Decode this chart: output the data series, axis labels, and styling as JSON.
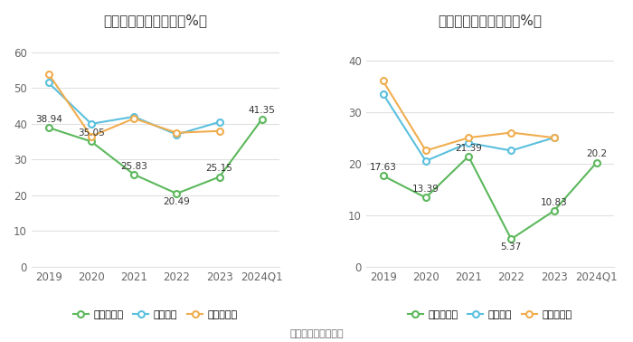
{
  "chart1_title": "历年毛利率变化情况（%）",
  "chart2_title": "历年净利率变化情况（%）",
  "x_labels": [
    "2019",
    "2020",
    "2021",
    "2022",
    "2023",
    "2024Q1"
  ],
  "gross_company": [
    38.94,
    35.05,
    25.83,
    20.49,
    25.15,
    41.35
  ],
  "gross_industry_avg": [
    51.5,
    40.0,
    42.0,
    37.0,
    40.5,
    null
  ],
  "gross_industry_median": [
    54.0,
    36.5,
    41.5,
    37.5,
    38.0,
    null
  ],
  "net_company": [
    17.63,
    13.39,
    21.39,
    5.37,
    10.83,
    20.2
  ],
  "net_industry_avg": [
    33.5,
    20.5,
    24.0,
    22.5,
    25.0,
    null
  ],
  "net_industry_median": [
    36.0,
    22.5,
    25.0,
    26.0,
    25.0,
    null
  ],
  "color_company": "#5cb85c",
  "color_industry_avg": "#5bc0de",
  "color_industry_median": "#f0ad4e",
  "legend1": [
    "公司毛利率",
    "行业均值",
    "行业中位数"
  ],
  "legend2": [
    "公司净利率",
    "行业均值",
    "行业中位数"
  ],
  "source_text": "数据来源：恒生聚源",
  "chart1_ylim": [
    0,
    65
  ],
  "chart1_yticks": [
    0,
    10,
    20,
    30,
    40,
    50,
    60
  ],
  "chart2_ylim": [
    0,
    45
  ],
  "chart2_yticks": [
    0,
    10,
    20,
    30,
    40
  ],
  "bg_color": "#ffffff",
  "grid_color": "#e0e0e0"
}
